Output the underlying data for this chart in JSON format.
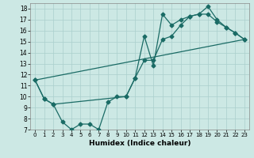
{
  "title": "",
  "xlabel": "Humidex (Indice chaleur)",
  "ylabel": "",
  "bg_color": "#cce8e4",
  "line_color": "#1a6b65",
  "grid_color": "#aacfcc",
  "xlim": [
    -0.5,
    23.5
  ],
  "ylim": [
    7,
    18.5
  ],
  "xticks": [
    0,
    1,
    2,
    3,
    4,
    5,
    6,
    7,
    8,
    9,
    10,
    11,
    12,
    13,
    14,
    15,
    16,
    17,
    18,
    19,
    20,
    21,
    22,
    23
  ],
  "yticks": [
    7,
    8,
    9,
    10,
    11,
    12,
    13,
    14,
    15,
    16,
    17,
    18
  ],
  "line1_jagged": {
    "x": [
      0,
      1,
      2,
      3,
      4,
      5,
      6,
      7,
      8,
      9,
      10,
      11,
      12,
      13,
      14,
      15,
      16,
      17,
      18,
      19,
      20,
      21,
      22,
      23
    ],
    "y": [
      11.5,
      9.8,
      9.3,
      7.7,
      7.0,
      7.5,
      7.5,
      7.0,
      9.5,
      10.0,
      10.0,
      11.7,
      15.5,
      12.8,
      17.5,
      16.5,
      17.0,
      17.3,
      17.5,
      18.2,
      17.0,
      16.3,
      15.8,
      15.2
    ]
  },
  "line2_smooth": {
    "x": [
      0,
      1,
      2,
      10,
      11,
      12,
      13,
      14,
      15,
      16,
      17,
      18,
      19,
      20,
      21,
      22,
      23
    ],
    "y": [
      11.5,
      9.8,
      9.3,
      10.0,
      11.7,
      13.3,
      13.3,
      15.2,
      15.5,
      16.5,
      17.3,
      17.5,
      17.5,
      16.8,
      16.3,
      15.8,
      15.2
    ]
  },
  "line3_diagonal": {
    "x": [
      0,
      23
    ],
    "y": [
      11.5,
      15.2
    ]
  }
}
